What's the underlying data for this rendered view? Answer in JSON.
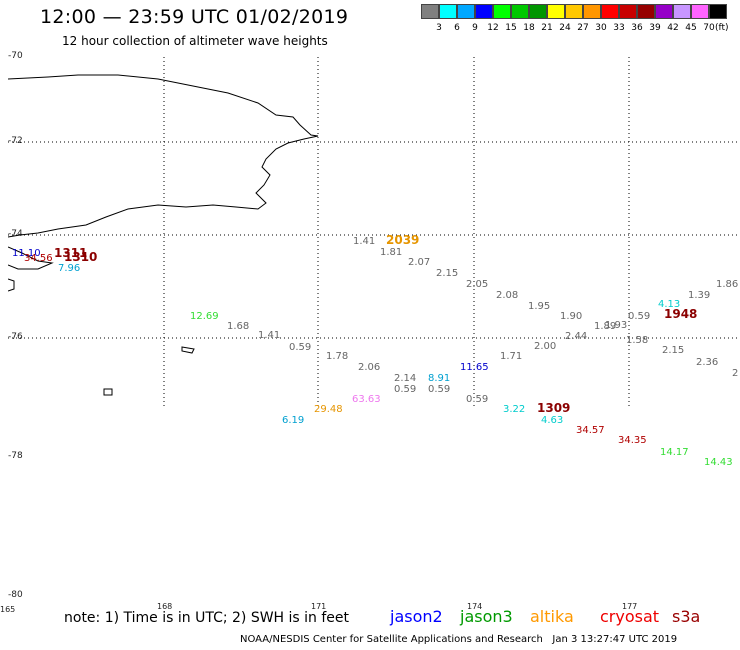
{
  "header": {
    "title": "12:00 — 23:59 UTC 01/02/2019",
    "subtitle": "12 hour collection of altimeter wave heights"
  },
  "scale": {
    "colors": [
      "#808080",
      "#00ffff",
      "#00a8ff",
      "#0000ff",
      "#00ff00",
      "#00c800",
      "#009600",
      "#ffff00",
      "#ffc800",
      "#ff9600",
      "#ff0000",
      "#c80000",
      "#960000",
      "#9600c8",
      "#c896ff",
      "#ff64ff",
      "#000000"
    ],
    "ticks": [
      "3",
      "6",
      "9",
      "12",
      "15",
      "18",
      "21",
      "24",
      "27",
      "30",
      "33",
      "36",
      "39",
      "42",
      "45",
      "70"
    ],
    "unit": "(ft)"
  },
  "axes": {
    "lat_labels": [
      "-70",
      "-72",
      "-74",
      "-76",
      "-78",
      "-80"
    ],
    "lon_labels": [
      "165",
      "168",
      "171",
      "174",
      "177"
    ]
  },
  "observations": [
    {
      "text": "11.10",
      "color": "#0000cc"
    },
    {
      "text": "1311",
      "color": "#8b0000"
    },
    {
      "text": "34.56",
      "color": "#b00000"
    },
    {
      "text": "1310",
      "color": "#8b0000"
    },
    {
      "text": "7.96",
      "color": "#00a0d0"
    },
    {
      "text": "1.41",
      "color": "#666666"
    },
    {
      "text": "2039",
      "color": "#e69500"
    },
    {
      "text": "1.81",
      "color": "#666666"
    },
    {
      "text": "2.07",
      "color": "#666666"
    },
    {
      "text": "2.15",
      "color": "#666666"
    },
    {
      "text": "2.05",
      "color": "#666666"
    },
    {
      "text": "2.08",
      "color": "#666666"
    },
    {
      "text": "1.95",
      "color": "#666666"
    },
    {
      "text": "1.90",
      "color": "#666666"
    },
    {
      "text": "1.89",
      "color": "#666666"
    },
    {
      "text": "1.93",
      "color": "#666666"
    },
    {
      "text": "0.59",
      "color": "#666666"
    },
    {
      "text": "4.13",
      "color": "#00cccc"
    },
    {
      "text": "1948",
      "color": "#8b0000"
    },
    {
      "text": "1.39",
      "color": "#666666"
    },
    {
      "text": "1.86",
      "color": "#666666"
    },
    {
      "text": "12.69",
      "color": "#33dd33"
    },
    {
      "text": "1.68",
      "color": "#666666"
    },
    {
      "text": "1.41",
      "color": "#666666"
    },
    {
      "text": "0.59",
      "color": "#666666"
    },
    {
      "text": "1.78",
      "color": "#666666"
    },
    {
      "text": "2.06",
      "color": "#666666"
    },
    {
      "text": "2.14",
      "color": "#666666"
    },
    {
      "text": "8.91",
      "color": "#00a0d0"
    },
    {
      "text": "0.59",
      "color": "#666666"
    },
    {
      "text": "0.59",
      "color": "#666666"
    },
    {
      "text": "11.65",
      "color": "#0000cc"
    },
    {
      "text": "1.71",
      "color": "#666666"
    },
    {
      "text": "2.00",
      "color": "#666666"
    },
    {
      "text": "2.44",
      "color": "#666666"
    },
    {
      "text": "1.58",
      "color": "#666666"
    },
    {
      "text": "2.15",
      "color": "#666666"
    },
    {
      "text": "2.36",
      "color": "#666666"
    },
    {
      "text": "2",
      "color": "#666666"
    },
    {
      "text": "63.63",
      "color": "#ee77ee"
    },
    {
      "text": "29.48",
      "color": "#e69500"
    },
    {
      "text": "6.19",
      "color": "#00a0d0"
    },
    {
      "text": "0.59",
      "color": "#666666"
    },
    {
      "text": "3.22",
      "color": "#00cccc"
    },
    {
      "text": "1309",
      "color": "#8b0000"
    },
    {
      "text": "4.63",
      "color": "#00cccc"
    },
    {
      "text": "34.57",
      "color": "#b00000"
    },
    {
      "text": "34.35",
      "color": "#b00000"
    },
    {
      "text": "14.17",
      "color": "#33dd33"
    },
    {
      "text": "14.43",
      "color": "#33dd33"
    }
  ],
  "footer": {
    "note": "note: 1) Time is in UTC; 2) SWH is in feet",
    "satellites": [
      {
        "name": "jason2",
        "color": "#0000ff"
      },
      {
        "name": "jason3",
        "color": "#009900"
      },
      {
        "name": "altika",
        "color": "#ff9900"
      },
      {
        "name": "cryosat",
        "color": "#ee0000"
      },
      {
        "name": "s3a",
        "color": "#990000"
      }
    ],
    "credit": "NOAA/NESDIS Center for Satellite Applications and Research",
    "timestamp": "Jan  3 13:27:47 UTC 2019"
  }
}
